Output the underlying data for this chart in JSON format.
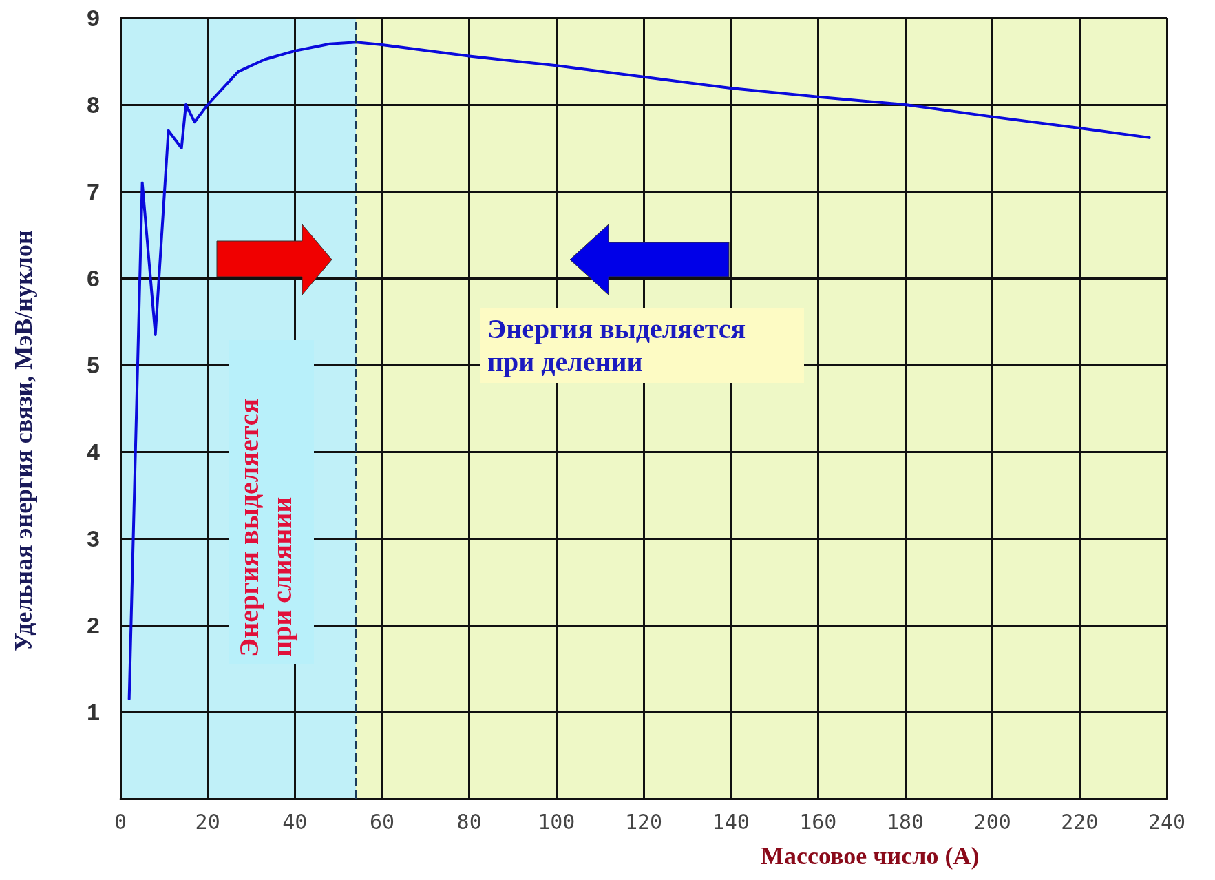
{
  "chart_data": {
    "type": "line",
    "xlabel": "Массовое число (A)",
    "ylabel": "Удельная энергия связи, МэВ/нуклон",
    "x": [
      2,
      5,
      8,
      11,
      14,
      15,
      17,
      20,
      27,
      33,
      40,
      48,
      54,
      60,
      80,
      100,
      120,
      140,
      160,
      180,
      200,
      220,
      236
    ],
    "series": [
      {
        "color": "#0a0adc",
        "values": [
          1.15,
          7.1,
          5.35,
          7.7,
          7.5,
          8.0,
          7.8,
          8.0,
          8.38,
          8.52,
          8.62,
          8.7,
          8.72,
          8.69,
          8.56,
          8.45,
          8.32,
          8.19,
          8.09,
          8.0,
          7.86,
          7.73,
          7.62
        ]
      }
    ],
    "xlim": [
      0,
      240
    ],
    "xticks": [
      0,
      20,
      40,
      60,
      80,
      100,
      120,
      140,
      160,
      180,
      200,
      220,
      240
    ],
    "ylim": [
      0,
      9
    ],
    "yticks": [
      1,
      2,
      3,
      4,
      5,
      6,
      7,
      8,
      9
    ],
    "grid": true,
    "marker": "none",
    "line_style": "solid",
    "bands": [
      {
        "axis": "x",
        "from": 0,
        "to": 54,
        "color": "#c0f0f8"
      },
      {
        "axis": "x",
        "from": 54,
        "to": 240,
        "color": "#eef8c6"
      }
    ],
    "ref_lines": [
      {
        "axis": "x",
        "value": 54,
        "line_style": "dashed",
        "color": "#1a3a5a"
      }
    ],
    "annotations": [
      "Энергия выделяется при слиянии",
      "Энергия выделяется при делении"
    ]
  }
}
